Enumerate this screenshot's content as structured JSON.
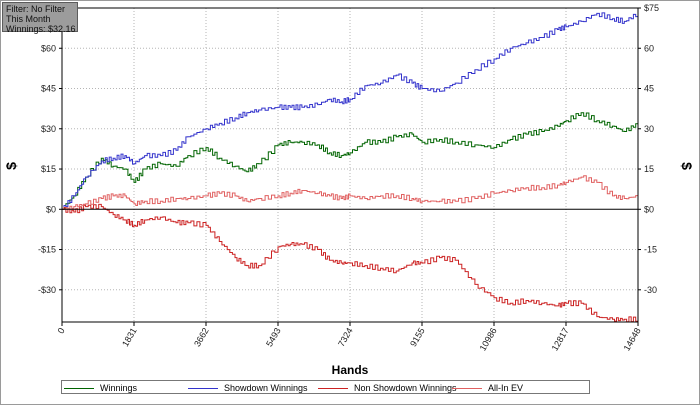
{
  "filter_box": {
    "filter": "Filter: No Filter",
    "period": "This Month",
    "winnings": "Winnings: $32.16"
  },
  "chart_data": {
    "type": "line",
    "xlabel": "Hands",
    "ylabel": "$",
    "xlim": [
      0,
      14648
    ],
    "ylim": [
      -42,
      75
    ],
    "x_ticks": [
      0,
      1831,
      3662,
      5493,
      7324,
      9155,
      10986,
      12817,
      14648
    ],
    "y_ticks": [
      {
        "value": 75,
        "left": "",
        "right": "$75"
      },
      {
        "value": 60,
        "left": "$60",
        "right": "60"
      },
      {
        "value": 45,
        "left": "$45",
        "right": "45"
      },
      {
        "value": 30,
        "left": "$30",
        "right": "30"
      },
      {
        "value": 15,
        "left": "$15",
        "right": "15"
      },
      {
        "value": 0,
        "left": "$0",
        "right": "$0"
      },
      {
        "value": -15,
        "left": "-$15",
        "right": "-15"
      },
      {
        "value": -30,
        "left": "-$30",
        "right": "-30"
      }
    ],
    "grid": true,
    "legend_position": "bottom",
    "series": [
      {
        "name": "Winnings",
        "color": "#006400",
        "points": [
          [
            0,
            0
          ],
          [
            300,
            5
          ],
          [
            600,
            12
          ],
          [
            1000,
            19
          ],
          [
            1300,
            16
          ],
          [
            1600,
            15
          ],
          [
            1831,
            10
          ],
          [
            2100,
            15
          ],
          [
            2500,
            17
          ],
          [
            2900,
            16
          ],
          [
            3200,
            20
          ],
          [
            3662,
            23
          ],
          [
            4000,
            19
          ],
          [
            4400,
            16
          ],
          [
            4700,
            14
          ],
          [
            5000,
            17
          ],
          [
            5493,
            24
          ],
          [
            5800,
            25
          ],
          [
            6100,
            25
          ],
          [
            6500,
            24
          ],
          [
            6800,
            21
          ],
          [
            7100,
            20
          ],
          [
            7324,
            21
          ],
          [
            7700,
            25
          ],
          [
            8100,
            25
          ],
          [
            8500,
            27
          ],
          [
            8900,
            28
          ],
          [
            9155,
            25
          ],
          [
            9600,
            26
          ],
          [
            10000,
            25
          ],
          [
            10500,
            24
          ],
          [
            10986,
            23
          ],
          [
            11400,
            26
          ],
          [
            11800,
            28
          ],
          [
            12200,
            29
          ],
          [
            12600,
            31
          ],
          [
            12817,
            33
          ],
          [
            13200,
            36
          ],
          [
            13600,
            33
          ],
          [
            14000,
            31
          ],
          [
            14300,
            29
          ],
          [
            14648,
            32
          ]
        ]
      },
      {
        "name": "Showdown Winnings",
        "color": "#3333cc",
        "points": [
          [
            0,
            0
          ],
          [
            300,
            5
          ],
          [
            600,
            12
          ],
          [
            1000,
            18
          ],
          [
            1300,
            19
          ],
          [
            1600,
            20
          ],
          [
            1831,
            17
          ],
          [
            2100,
            20
          ],
          [
            2500,
            20
          ],
          [
            2900,
            22
          ],
          [
            3200,
            27
          ],
          [
            3662,
            30
          ],
          [
            4000,
            32
          ],
          [
            4400,
            34
          ],
          [
            4700,
            36
          ],
          [
            5000,
            37
          ],
          [
            5493,
            38
          ],
          [
            5800,
            38
          ],
          [
            6100,
            38
          ],
          [
            6500,
            39
          ],
          [
            6800,
            41
          ],
          [
            7100,
            40
          ],
          [
            7324,
            41
          ],
          [
            7700,
            46
          ],
          [
            8100,
            47
          ],
          [
            8500,
            50
          ],
          [
            8900,
            47
          ],
          [
            9155,
            45
          ],
          [
            9600,
            44
          ],
          [
            10000,
            47
          ],
          [
            10500,
            52
          ],
          [
            10986,
            56
          ],
          [
            11400,
            60
          ],
          [
            11800,
            62
          ],
          [
            12200,
            64
          ],
          [
            12600,
            67
          ],
          [
            12817,
            68
          ],
          [
            13200,
            70
          ],
          [
            13600,
            73
          ],
          [
            14000,
            71
          ],
          [
            14300,
            70
          ],
          [
            14648,
            73
          ]
        ]
      },
      {
        "name": "Non Showdown Winnings",
        "color": "#cc2222",
        "points": [
          [
            0,
            0
          ],
          [
            300,
            -1
          ],
          [
            600,
            1
          ],
          [
            1000,
            1
          ],
          [
            1300,
            -2
          ],
          [
            1600,
            -4
          ],
          [
            1831,
            -6
          ],
          [
            2100,
            -4
          ],
          [
            2500,
            -3
          ],
          [
            2900,
            -5
          ],
          [
            3200,
            -5
          ],
          [
            3662,
            -6
          ],
          [
            4000,
            -12
          ],
          [
            4400,
            -18
          ],
          [
            4700,
            -21
          ],
          [
            5000,
            -21
          ],
          [
            5493,
            -14
          ],
          [
            5800,
            -13
          ],
          [
            6100,
            -13
          ],
          [
            6500,
            -15
          ],
          [
            6800,
            -19
          ],
          [
            7100,
            -20
          ],
          [
            7324,
            -20
          ],
          [
            7700,
            -21
          ],
          [
            8100,
            -22
          ],
          [
            8500,
            -23
          ],
          [
            8900,
            -20
          ],
          [
            9155,
            -20
          ],
          [
            9600,
            -18
          ],
          [
            10000,
            -19
          ],
          [
            10500,
            -28
          ],
          [
            10986,
            -33
          ],
          [
            11400,
            -35
          ],
          [
            11800,
            -34
          ],
          [
            12200,
            -35
          ],
          [
            12600,
            -36
          ],
          [
            12817,
            -35
          ],
          [
            13200,
            -35
          ],
          [
            13600,
            -40
          ],
          [
            14000,
            -41
          ],
          [
            14300,
            -41
          ],
          [
            14648,
            -41
          ]
        ]
      },
      {
        "name": "All-In EV",
        "color": "#e06060",
        "points": [
          [
            0,
            0
          ],
          [
            300,
            1
          ],
          [
            600,
            2
          ],
          [
            1000,
            4
          ],
          [
            1300,
            5
          ],
          [
            1600,
            5
          ],
          [
            1831,
            2
          ],
          [
            2100,
            3
          ],
          [
            2500,
            3
          ],
          [
            2900,
            4
          ],
          [
            3200,
            4
          ],
          [
            3662,
            5
          ],
          [
            4000,
            6
          ],
          [
            4400,
            5
          ],
          [
            4700,
            3
          ],
          [
            5000,
            4
          ],
          [
            5493,
            5
          ],
          [
            5800,
            6
          ],
          [
            6100,
            7
          ],
          [
            6500,
            6
          ],
          [
            6800,
            5
          ],
          [
            7100,
            4
          ],
          [
            7324,
            5
          ],
          [
            7700,
            4
          ],
          [
            8100,
            5
          ],
          [
            8500,
            5
          ],
          [
            8900,
            4
          ],
          [
            9155,
            3
          ],
          [
            9600,
            3
          ],
          [
            10000,
            3
          ],
          [
            10500,
            4
          ],
          [
            10986,
            6
          ],
          [
            11400,
            7
          ],
          [
            11800,
            8
          ],
          [
            12200,
            8
          ],
          [
            12600,
            9
          ],
          [
            12817,
            10
          ],
          [
            13200,
            12
          ],
          [
            13600,
            10
          ],
          [
            14000,
            5
          ],
          [
            14300,
            4
          ],
          [
            14648,
            5
          ]
        ]
      }
    ]
  }
}
